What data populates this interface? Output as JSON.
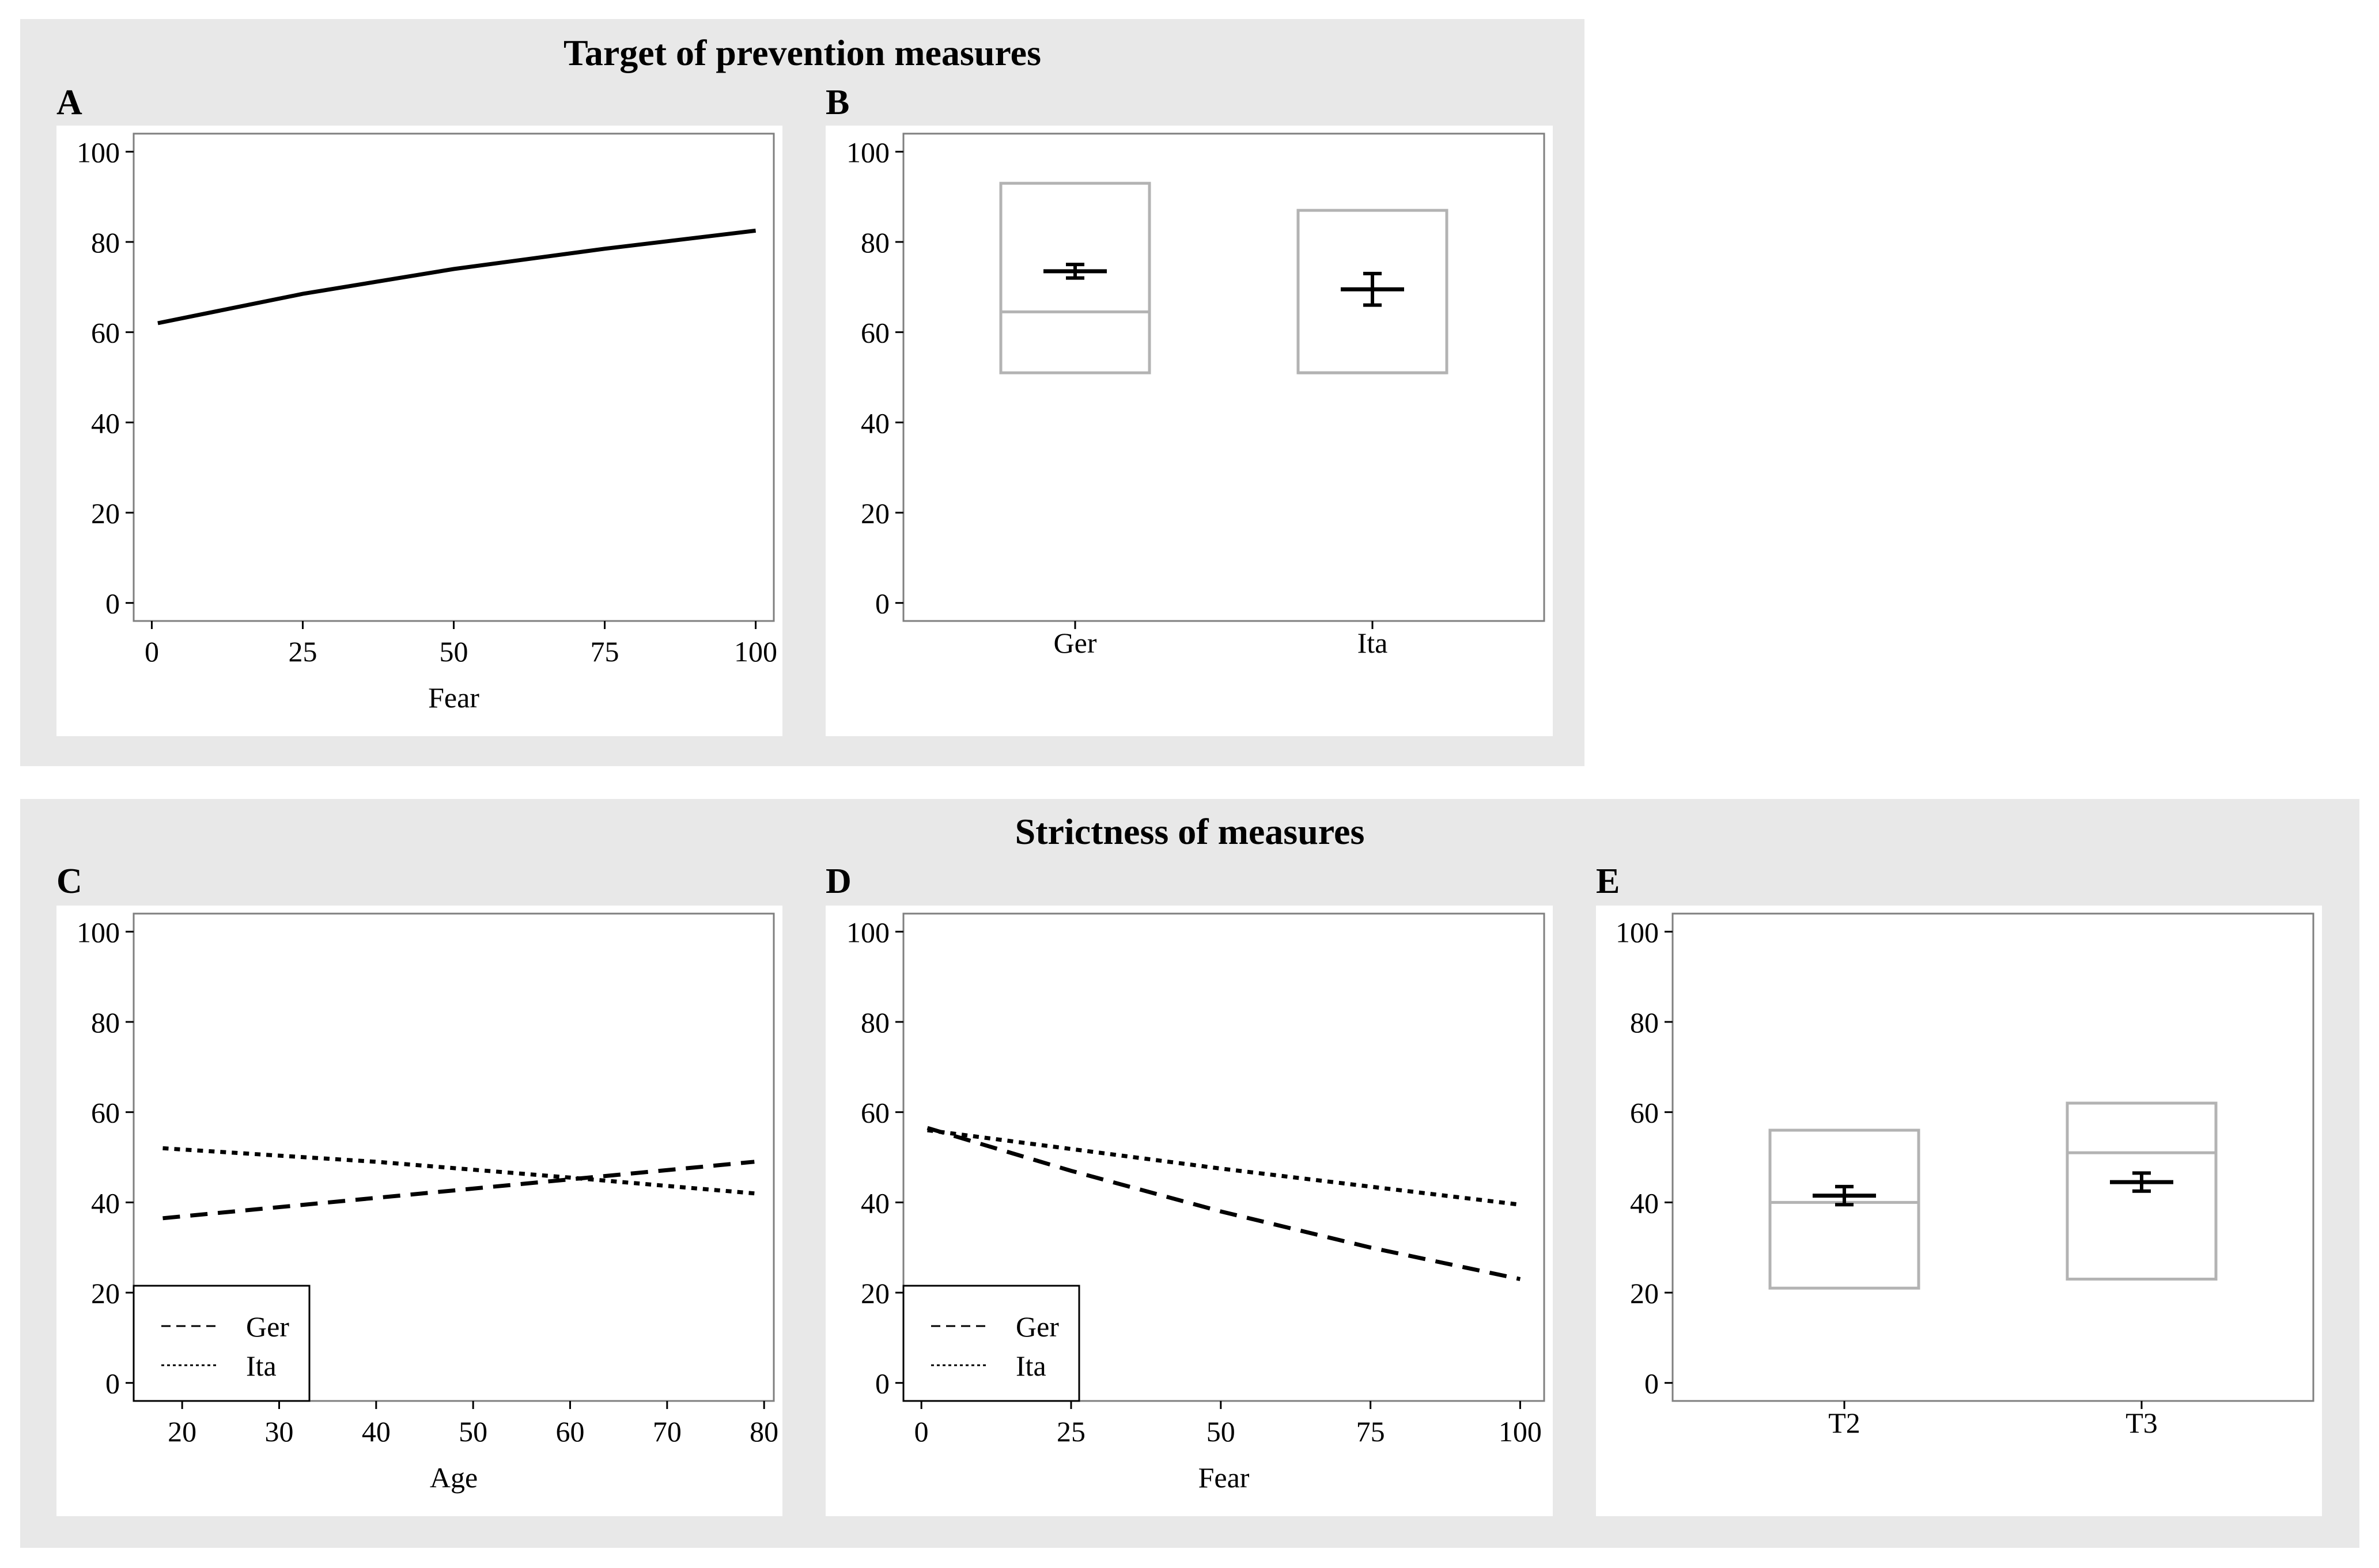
{
  "groups": {
    "top_title": "Target of prevention measures",
    "bottom_title": "Strictness of measures"
  },
  "colors": {
    "group_bg": "#e8e8e8",
    "line": "#000000",
    "box": "#b3b3b3",
    "frame": "#7f7f7f"
  },
  "chart_data": [
    {
      "id": "A",
      "label": "A",
      "type": "line",
      "xlabel": "Fear",
      "ylabel": "",
      "xlim": [
        -3,
        103
      ],
      "ylim": [
        -4,
        104
      ],
      "xticks": [
        0,
        25,
        50,
        75,
        100
      ],
      "yticks": [
        0,
        20,
        40,
        60,
        80,
        100
      ],
      "series": [
        {
          "name": "",
          "dash": "solid",
          "x": [
            1,
            25,
            50,
            75,
            100
          ],
          "y": [
            62,
            68.5,
            74,
            78.5,
            82.5
          ]
        }
      ]
    },
    {
      "id": "B",
      "label": "B",
      "type": "box",
      "xlabel": "",
      "ylabel": "",
      "ylim": [
        -4,
        104
      ],
      "yticks": [
        0,
        20,
        40,
        60,
        80,
        100
      ],
      "categories": [
        "Ger",
        "Ita"
      ],
      "boxes": [
        {
          "category": "Ger",
          "q1": 51,
          "median": 64.5,
          "q3": 93,
          "mean": 73.5,
          "ci": [
            72,
            75
          ]
        },
        {
          "category": "Ita",
          "q1": 51,
          "median": 51,
          "q3": 87,
          "mean": 69.5,
          "ci": [
            66,
            73
          ]
        }
      ]
    },
    {
      "id": "C",
      "label": "C",
      "type": "line",
      "xlabel": "Age",
      "ylabel": "",
      "xlim": [
        15,
        81
      ],
      "ylim": [
        -4,
        104
      ],
      "xticks": [
        20,
        30,
        40,
        50,
        60,
        70,
        80
      ],
      "yticks": [
        0,
        20,
        40,
        60,
        80,
        100
      ],
      "legend": {
        "position": "bottom-left",
        "entries": [
          "Ger",
          "Ita"
        ]
      },
      "series": [
        {
          "name": "Ger",
          "dash": "dashed",
          "x": [
            18,
            79
          ],
          "y": [
            36.5,
            49
          ]
        },
        {
          "name": "Ita",
          "dash": "dotted",
          "x": [
            18,
            40,
            60,
            79
          ],
          "y": [
            52,
            49,
            45.5,
            42
          ]
        }
      ]
    },
    {
      "id": "D",
      "label": "D",
      "type": "line",
      "xlabel": "Fear",
      "ylabel": "",
      "xlim": [
        -3,
        104
      ],
      "ylim": [
        -4,
        104
      ],
      "xticks": [
        0,
        25,
        50,
        75,
        100
      ],
      "yticks": [
        0,
        20,
        40,
        60,
        80,
        100
      ],
      "legend": {
        "position": "bottom-left",
        "entries": [
          "Ger",
          "Ita"
        ]
      },
      "series": [
        {
          "name": "Ger",
          "dash": "dashed",
          "x": [
            1,
            25,
            50,
            75,
            100
          ],
          "y": [
            56.5,
            47,
            38,
            30,
            23
          ]
        },
        {
          "name": "Ita",
          "dash": "dotted",
          "x": [
            1,
            50,
            100
          ],
          "y": [
            56,
            47.5,
            39.5
          ]
        }
      ]
    },
    {
      "id": "E",
      "label": "E",
      "type": "box",
      "xlabel": "",
      "ylabel": "",
      "ylim": [
        -4,
        104
      ],
      "yticks": [
        0,
        20,
        40,
        60,
        80,
        100
      ],
      "categories": [
        "T2",
        "T3"
      ],
      "boxes": [
        {
          "category": "T2",
          "q1": 21,
          "median": 40,
          "q3": 56,
          "mean": 41.5,
          "ci": [
            39.5,
            43.5
          ]
        },
        {
          "category": "T3",
          "q1": 23,
          "median": 51,
          "q3": 62,
          "mean": 44.5,
          "ci": [
            42.5,
            46.5
          ]
        }
      ]
    }
  ]
}
